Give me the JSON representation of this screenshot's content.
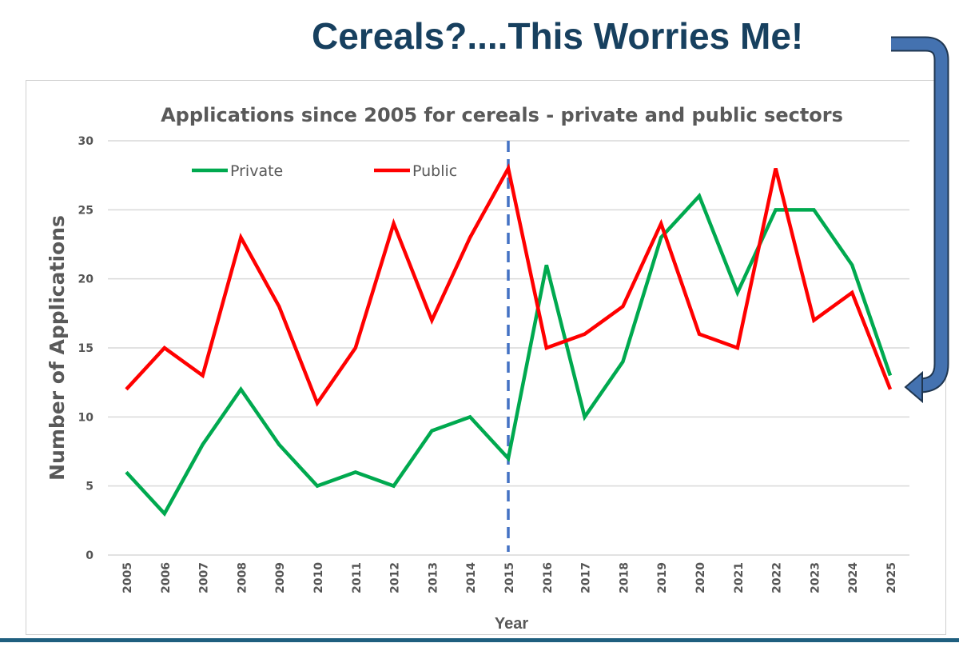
{
  "headline": "Cereals?....This Worries Me!",
  "chart_data": {
    "type": "line",
    "title": "Applications since 2005 for cereals -  private and public sectors",
    "xlabel": "Year",
    "ylabel": "Number  of Applications",
    "ylim": [
      0,
      30
    ],
    "yticks": [
      0,
      5,
      10,
      15,
      20,
      25,
      30
    ],
    "grid": true,
    "legend": "top-left",
    "categories": [
      "2005",
      "2006",
      "2007",
      "2008",
      "2009",
      "2010",
      "2011",
      "2012",
      "2013",
      "2014",
      "2015",
      "2016",
      "2017",
      "2018",
      "2019",
      "2020",
      "2021",
      "2022",
      "2023",
      "2024",
      "2025"
    ],
    "series": [
      {
        "name": "Private",
        "color": "#00a94f",
        "values": [
          6,
          3,
          8,
          12,
          8,
          5,
          6,
          5,
          9,
          10,
          7,
          21,
          10,
          14,
          23,
          26,
          19,
          25,
          25,
          21,
          13
        ]
      },
      {
        "name": "Public",
        "color": "#ff0000",
        "values": [
          12,
          15,
          13,
          23,
          18,
          11,
          15,
          24,
          17,
          23,
          28,
          15,
          16,
          18,
          24,
          16,
          15,
          28,
          17,
          19,
          12
        ]
      }
    ],
    "annotations": {
      "vertical_dashed_line_at": "2015",
      "dashed_line_color": "#4472c4",
      "arrow_color": "#4472b0"
    }
  }
}
